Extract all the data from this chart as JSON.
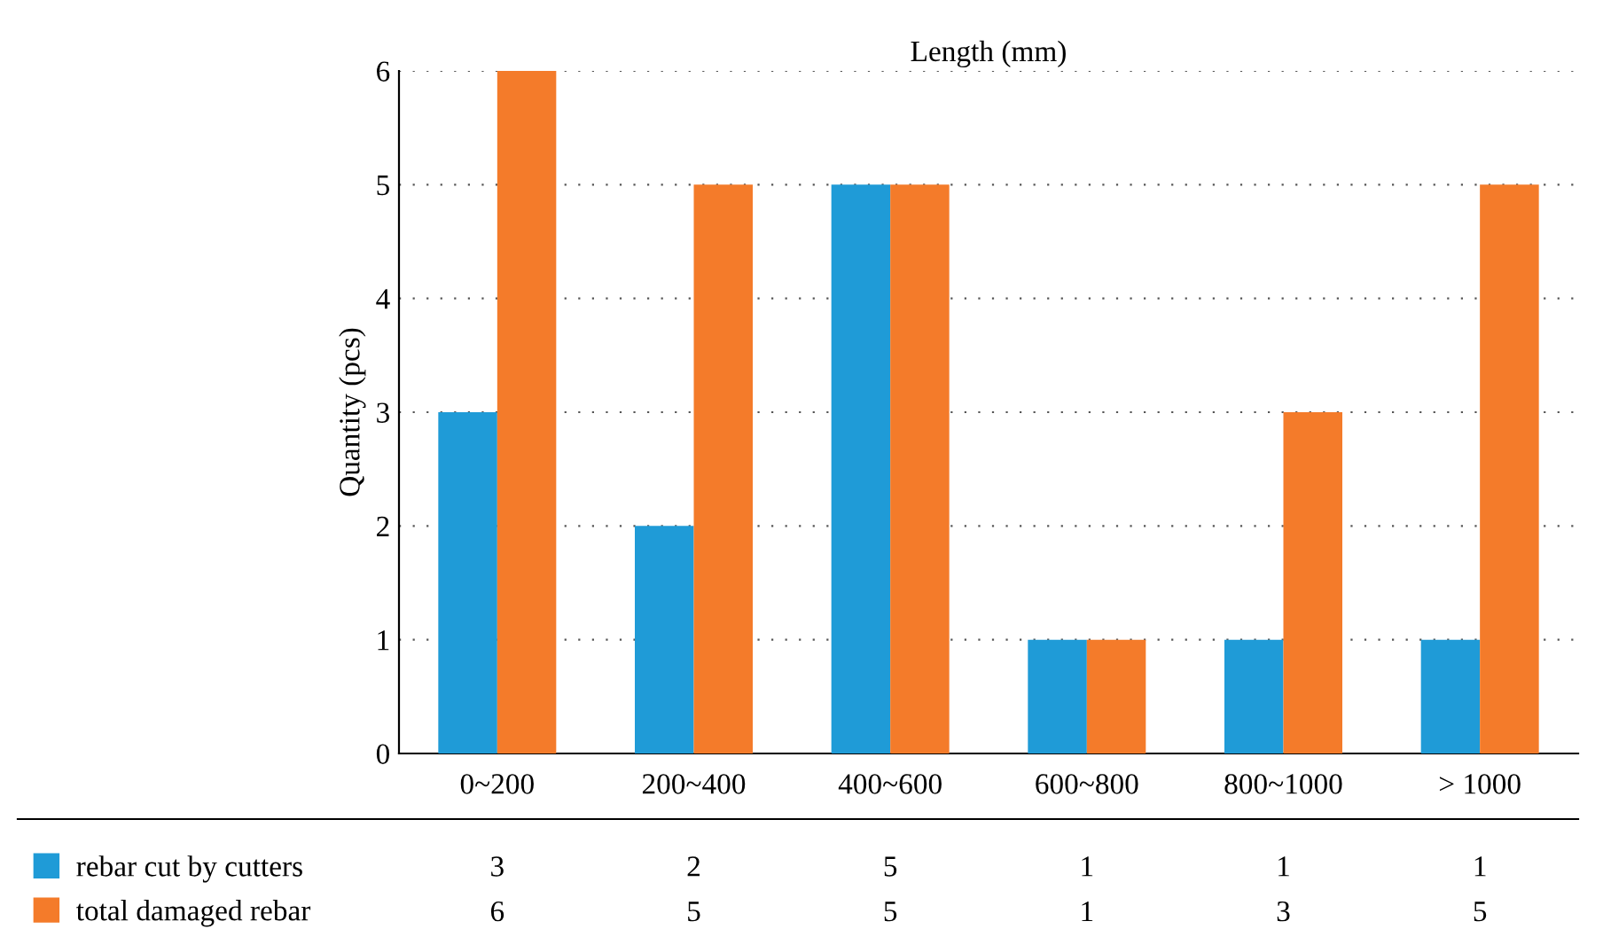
{
  "chart_data": {
    "type": "bar",
    "xlabel": "Length (mm)",
    "ylabel": "Quantity (pcs)",
    "categories": [
      "0~200",
      "200~400",
      "400~600",
      "600~800",
      "800~1000",
      "> 1000"
    ],
    "series": [
      {
        "name": "rebar cut by cutters",
        "color": "#1f9bd7",
        "values": [
          3,
          2,
          5,
          1,
          1,
          1
        ]
      },
      {
        "name": "total damaged rebar",
        "color": "#f47b2a",
        "values": [
          6,
          5,
          5,
          1,
          3,
          5
        ]
      }
    ],
    "ylim": [
      0,
      6
    ],
    "yticks": [
      0,
      1,
      2,
      3,
      4,
      5,
      6
    ],
    "grid": "y",
    "legend": "bottom",
    "data_labels": true
  }
}
